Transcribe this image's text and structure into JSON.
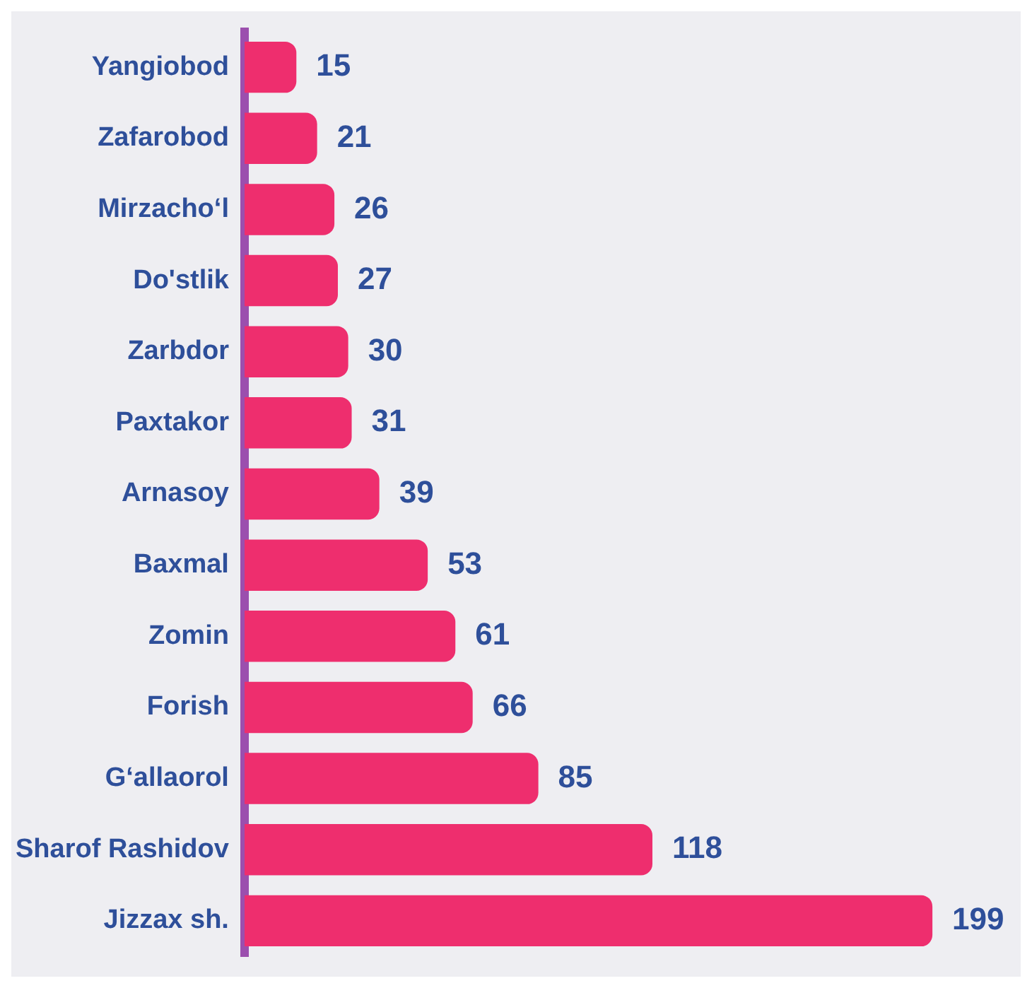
{
  "chart_data": {
    "type": "bar",
    "orientation": "horizontal",
    "data_labels": true,
    "categories": [
      "Yangiobod",
      "Zafarobod",
      "Mirzacho‘l",
      "Do'stlik",
      "Zarbdor",
      "Paxtakor",
      "Arnasoy",
      "Baxmal",
      "Zomin",
      "Forish",
      "G‘allaorol",
      "Sharof Rashidov",
      "Jizzax sh."
    ],
    "values": [
      15,
      21,
      26,
      27,
      30,
      31,
      39,
      53,
      61,
      66,
      85,
      118,
      199
    ],
    "color": "#ee2e6e"
  }
}
